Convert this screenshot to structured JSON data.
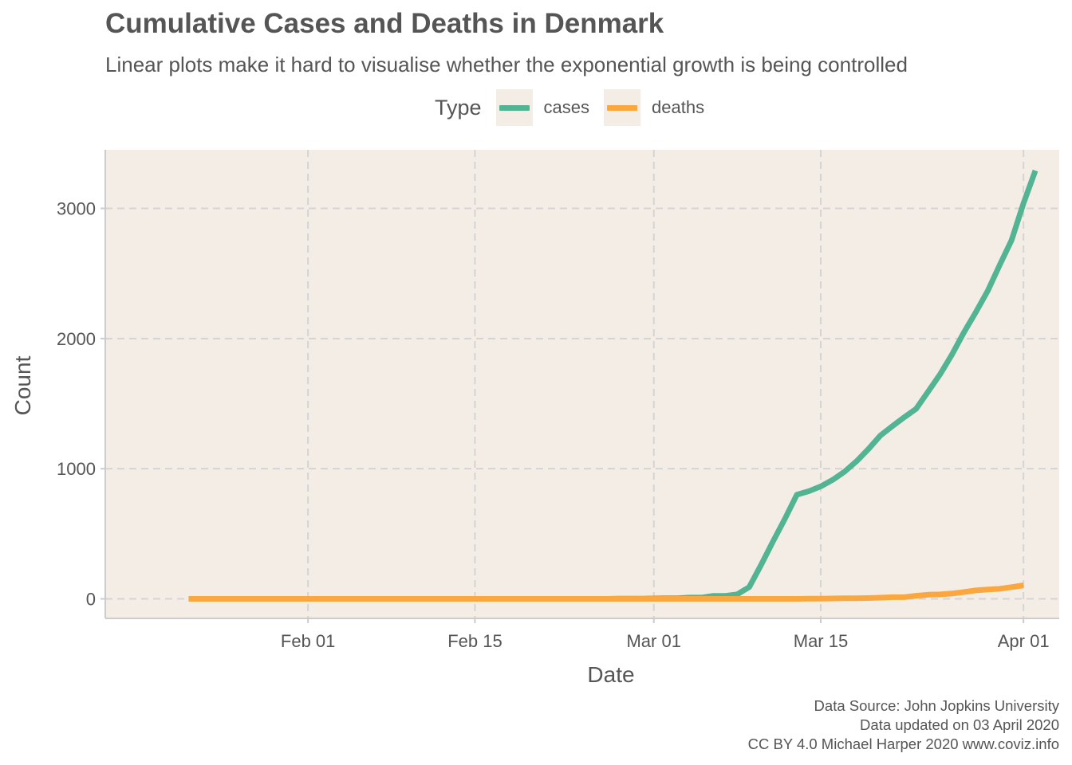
{
  "chart_data": {
    "type": "line",
    "title": "Cumulative Cases and Deaths in Denmark",
    "subtitle": "Linear plots make it hard to visualise whether the exponential growth is being controlled",
    "xlabel": "Date",
    "ylabel": "Count",
    "x_type": "date",
    "xlim": [
      "2020-01-15",
      "2020-04-04"
    ],
    "ylim": [
      -150,
      3450
    ],
    "x_ticks": [
      {
        "date": "2020-02-01",
        "label": "Feb 01"
      },
      {
        "date": "2020-02-15",
        "label": "Feb 15"
      },
      {
        "date": "2020-03-01",
        "label": "Mar 01"
      },
      {
        "date": "2020-03-15",
        "label": "Mar 15"
      },
      {
        "date": "2020-04-01",
        "label": "Apr 01"
      }
    ],
    "y_ticks": [
      0,
      1000,
      2000,
      3000
    ],
    "y_tick_labels": [
      "0",
      "1000",
      "2000",
      "3000"
    ],
    "grid": true,
    "grid_style": "dashed",
    "legend_title": "Type",
    "legend_position": "top",
    "panel_background": "#f3ede6",
    "series": [
      {
        "name": "cases",
        "color": "#52b493",
        "points": [
          [
            "2020-01-22",
            0
          ],
          [
            "2020-02-26",
            0
          ],
          [
            "2020-02-27",
            1
          ],
          [
            "2020-02-28",
            1
          ],
          [
            "2020-02-29",
            1
          ],
          [
            "2020-03-01",
            3
          ],
          [
            "2020-03-02",
            4
          ],
          [
            "2020-03-03",
            5
          ],
          [
            "2020-03-04",
            10
          ],
          [
            "2020-03-05",
            10
          ],
          [
            "2020-03-06",
            23
          ],
          [
            "2020-03-07",
            23
          ],
          [
            "2020-03-08",
            35
          ],
          [
            "2020-03-09",
            90
          ],
          [
            "2020-03-10",
            262
          ],
          [
            "2020-03-11",
            442
          ],
          [
            "2020-03-12",
            615
          ],
          [
            "2020-03-13",
            801
          ],
          [
            "2020-03-14",
            827
          ],
          [
            "2020-03-15",
            864
          ],
          [
            "2020-03-16",
            914
          ],
          [
            "2020-03-17",
            977
          ],
          [
            "2020-03-18",
            1057
          ],
          [
            "2020-03-19",
            1151
          ],
          [
            "2020-03-20",
            1255
          ],
          [
            "2020-03-21",
            1326
          ],
          [
            "2020-03-22",
            1395
          ],
          [
            "2020-03-23",
            1460
          ],
          [
            "2020-03-24",
            1591
          ],
          [
            "2020-03-25",
            1724
          ],
          [
            "2020-03-26",
            1877
          ],
          [
            "2020-03-27",
            2046
          ],
          [
            "2020-03-28",
            2201
          ],
          [
            "2020-03-29",
            2366
          ],
          [
            "2020-03-30",
            2564
          ],
          [
            "2020-03-31",
            2755
          ],
          [
            "2020-04-01",
            3039
          ],
          [
            "2020-04-02",
            3290
          ]
        ]
      },
      {
        "name": "deaths",
        "color": "#f9a73e",
        "points": [
          [
            "2020-01-22",
            0
          ],
          [
            "2020-03-13",
            0
          ],
          [
            "2020-03-14",
            1
          ],
          [
            "2020-03-15",
            2
          ],
          [
            "2020-03-16",
            3
          ],
          [
            "2020-03-17",
            4
          ],
          [
            "2020-03-18",
            4
          ],
          [
            "2020-03-19",
            6
          ],
          [
            "2020-03-20",
            9
          ],
          [
            "2020-03-21",
            13
          ],
          [
            "2020-03-22",
            13
          ],
          [
            "2020-03-23",
            24
          ],
          [
            "2020-03-24",
            32
          ],
          [
            "2020-03-25",
            34
          ],
          [
            "2020-03-26",
            41
          ],
          [
            "2020-03-27",
            52
          ],
          [
            "2020-03-28",
            65
          ],
          [
            "2020-03-29",
            72
          ],
          [
            "2020-03-30",
            77
          ],
          [
            "2020-03-31",
            90
          ],
          [
            "2020-04-01",
            104
          ]
        ]
      }
    ]
  },
  "caption": {
    "line1": "Data Source: John Jopkins University",
    "line2": "Data updated on 03 April 2020",
    "line3": "CC BY 4.0 Michael Harper 2020 www.coviz.info"
  }
}
